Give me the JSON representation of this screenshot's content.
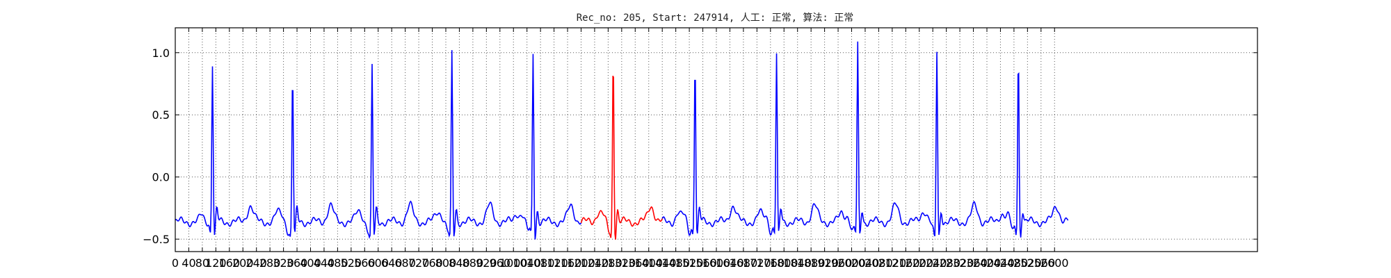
{
  "chart_data": {
    "type": "line",
    "title": "Rec_no: 205, Start: 247914, 人工: 正常, 算法: 正常",
    "xlabel": "",
    "ylabel": "",
    "xlim": [
      0,
      3200
    ],
    "ylim": [
      -0.6,
      1.2
    ],
    "grid": true,
    "yticks": [
      -0.5,
      0.0,
      0.5,
      1.0
    ],
    "ytick_labels": [
      "−0.5",
      "0.0",
      "0.5",
      "1.0"
    ],
    "xticks": [
      0,
      40,
      80,
      120,
      160,
      200,
      240,
      280,
      320,
      360,
      400,
      440,
      480,
      520,
      560,
      600,
      640,
      680,
      720,
      760,
      800,
      840,
      880,
      920,
      960,
      1000,
      1040,
      1080,
      1120,
      1160,
      1200,
      1240,
      1280,
      1320,
      1360,
      1400,
      1440,
      1480,
      1520,
      1560,
      1600,
      1640,
      1680,
      1720,
      1760,
      1800,
      1840,
      1880,
      1920,
      1960,
      2000,
      2040,
      2080,
      2120,
      2160,
      2200,
      2240,
      2280,
      2320,
      2360,
      2400,
      2440,
      2480,
      2520,
      2560,
      2600
    ],
    "series": [
      {
        "color": "#0000ff",
        "baseline": -0.36,
        "x_end": 2640,
        "beats": [
          {
            "x": 110,
            "peak": 0.92
          },
          {
            "x": 347,
            "peak": 0.85
          },
          {
            "x": 582,
            "peak": 0.9
          },
          {
            "x": 818,
            "peak": 1.0
          },
          {
            "x": 1058,
            "peak": 1.0
          },
          {
            "x": 1537,
            "peak": 0.97
          },
          {
            "x": 1778,
            "peak": 0.99
          },
          {
            "x": 2018,
            "peak": 1.07
          },
          {
            "x": 2252,
            "peak": 1.03
          },
          {
            "x": 2493,
            "peak": 1.02
          }
        ]
      },
      {
        "color": "#ff0000",
        "x_range": [
          1200,
          1440
        ],
        "beats": [
          {
            "x": 1295,
            "peak": 1.0
          }
        ]
      }
    ]
  }
}
